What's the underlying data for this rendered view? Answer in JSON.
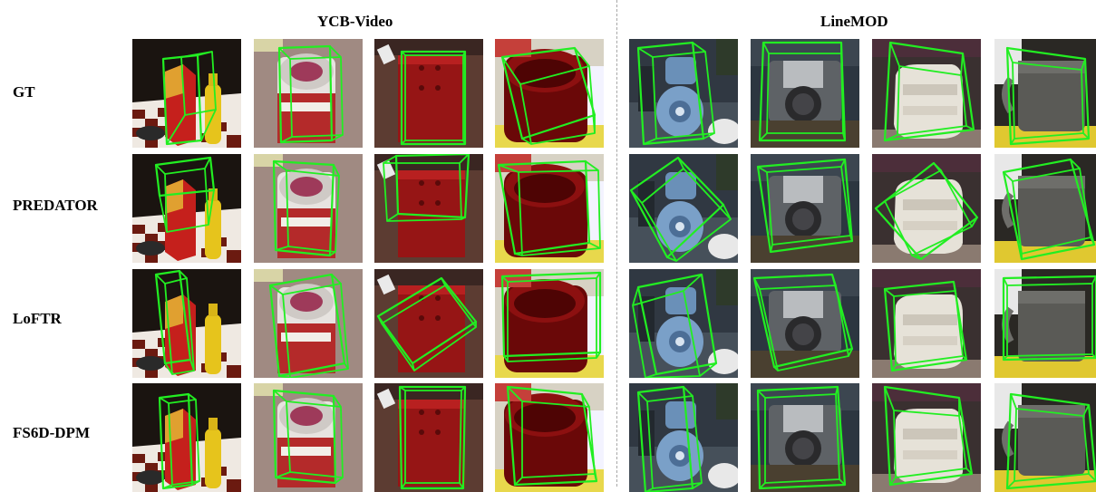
{
  "headers": [
    "YCB-Video",
    "LineMOD"
  ],
  "rows": [
    {
      "label": "GT"
    },
    {
      "label": "PREDATOR"
    },
    {
      "label": "LoFTR"
    },
    {
      "label": "FS6D-DPM"
    }
  ],
  "colors": {
    "bbox": "#22ee22",
    "divider": "#a8a8a8"
  },
  "scenes": [
    "cracker-box-mustard",
    "soup-can",
    "red-wood-block",
    "red-mug",
    "blue-driller",
    "camera",
    "white-glue",
    "grey-cup"
  ]
}
